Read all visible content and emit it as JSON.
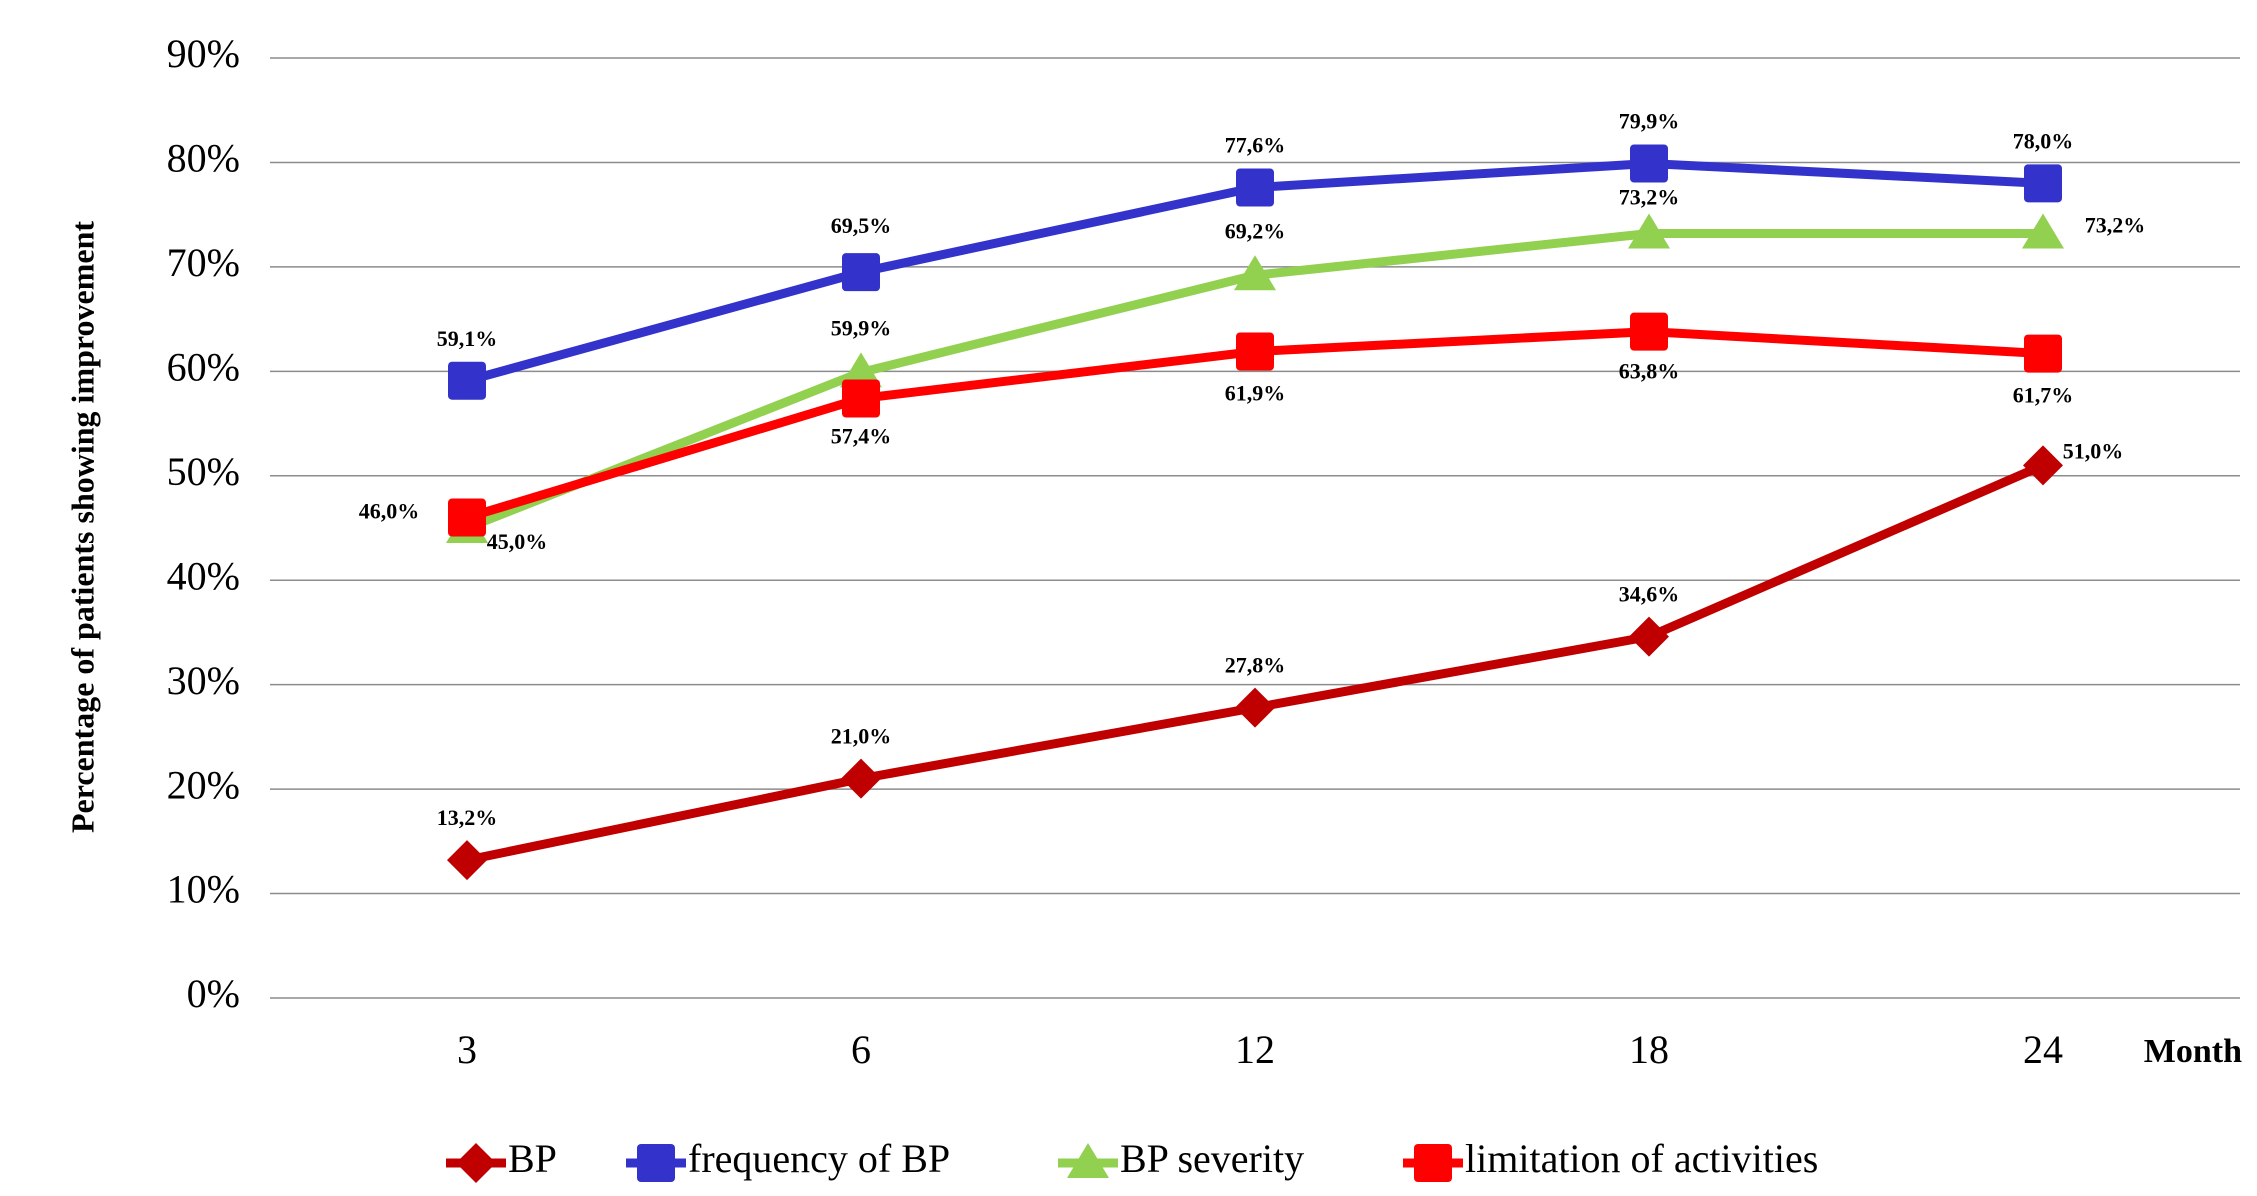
{
  "chart_data": {
    "type": "line",
    "y_axis_label": "Percentage of patients showing improvement",
    "x_axis_label": "Month",
    "categories": [
      "3",
      "6",
      "12",
      "18",
      "24"
    ],
    "ylim": [
      0,
      90
    ],
    "yticks": [
      {
        "value": 0,
        "label": "0%"
      },
      {
        "value": 10,
        "label": "10%"
      },
      {
        "value": 20,
        "label": "20%"
      },
      {
        "value": 30,
        "label": "30%"
      },
      {
        "value": 40,
        "label": "40%"
      },
      {
        "value": 50,
        "label": "50%"
      },
      {
        "value": 60,
        "label": "60%"
      },
      {
        "value": 70,
        "label": "70%"
      },
      {
        "value": 80,
        "label": "80%"
      },
      {
        "value": 90,
        "label": "90%"
      }
    ],
    "grid": true,
    "legend": "bottom",
    "series": [
      {
        "name": "BP",
        "color": "#c00000",
        "marker": "diamond",
        "values": [
          13.2,
          21.0,
          27.8,
          34.6,
          51.0
        ],
        "value_labels": [
          "13,2%",
          "21,0%",
          "27,8%",
          "34,6%",
          "51,0%"
        ]
      },
      {
        "name": "frequency of BP",
        "color": "#3333cc",
        "marker": "square",
        "values": [
          59.1,
          69.5,
          77.6,
          79.9,
          78.0
        ],
        "value_labels": [
          "59,1%",
          "69,5%",
          "77,6%",
          "79,9%",
          "78,0%"
        ]
      },
      {
        "name": "BP severity",
        "color": "#92d050",
        "marker": "triangle",
        "values": [
          45.0,
          59.9,
          69.2,
          73.2,
          73.2
        ],
        "value_labels": [
          "45,0%",
          "59,9%",
          "69,2%",
          "73,2%",
          "73,2%"
        ]
      },
      {
        "name": "limitation of activities",
        "color": "#ff0000",
        "marker": "square",
        "values": [
          46.0,
          57.4,
          61.9,
          63.8,
          61.7
        ],
        "value_labels": [
          "46,0%",
          "57,4%",
          "61,9%",
          "63,8%",
          "61,7%"
        ]
      }
    ]
  }
}
